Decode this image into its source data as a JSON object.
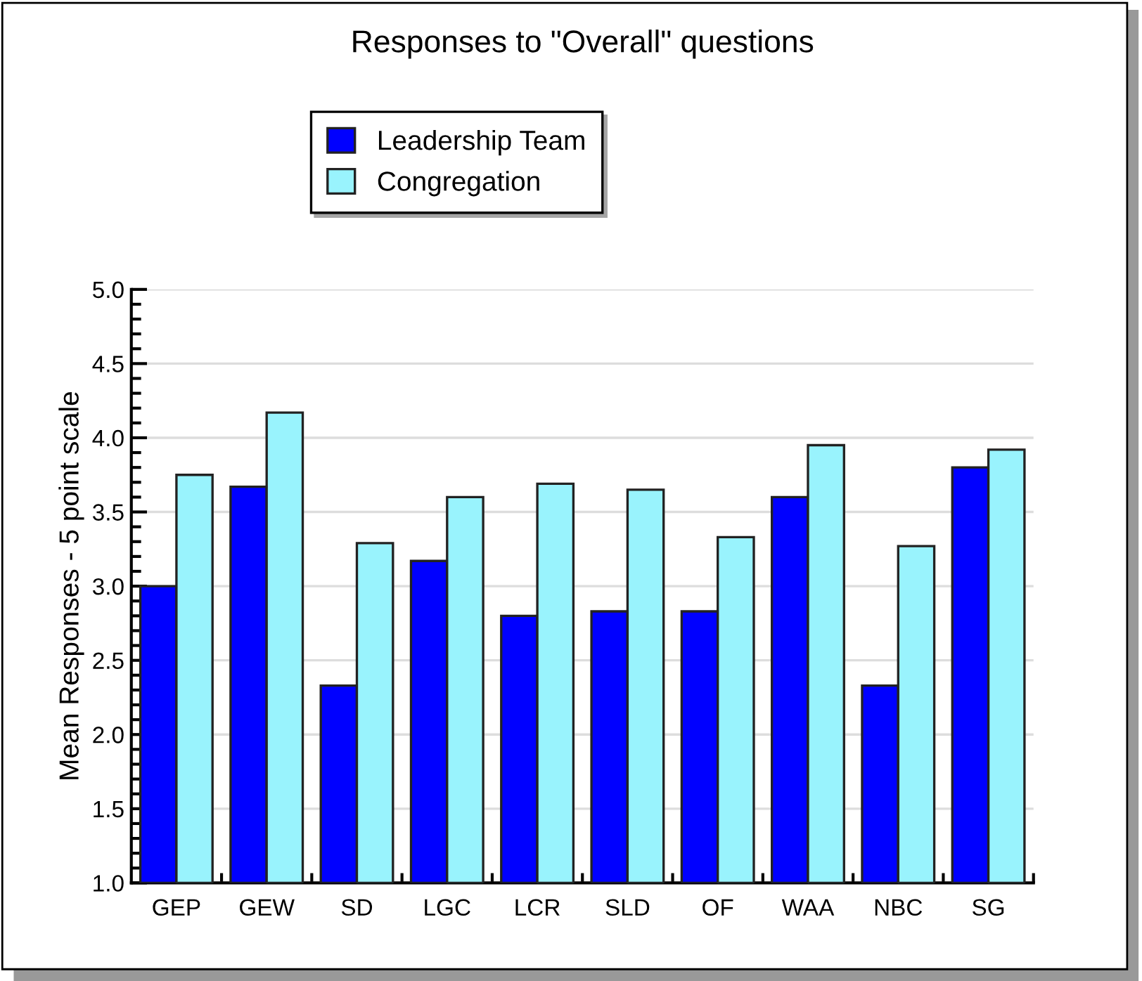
{
  "chart_data": {
    "type": "bar",
    "title": "Responses to \"Overall\" questions",
    "ylabel": "Mean Responses - 5 point scale",
    "categories": [
      "GEP",
      "GEW",
      "SD",
      "LGC",
      "LCR",
      "SLD",
      "OF",
      "WAA",
      "NBC",
      "SG"
    ],
    "series": [
      {
        "name": "Leadership Team",
        "color": "#0000ff",
        "values": [
          3.0,
          3.67,
          2.33,
          3.17,
          2.8,
          2.83,
          2.83,
          3.6,
          2.33,
          3.8
        ]
      },
      {
        "name": "Congregation",
        "color": "#99f3fd",
        "values": [
          3.75,
          4.17,
          3.29,
          3.6,
          3.69,
          3.65,
          3.33,
          3.95,
          3.27,
          3.92
        ]
      }
    ],
    "ylim": [
      1.0,
      5.0
    ],
    "yticks": [
      {
        "value": 1.0,
        "label": "1.0"
      },
      {
        "value": 1.5,
        "label": "1.5"
      },
      {
        "value": 2.0,
        "label": "2.0"
      },
      {
        "value": 2.5,
        "label": "2.5"
      },
      {
        "value": 3.0,
        "label": "3.0"
      },
      {
        "value": 3.5,
        "label": "3.5"
      },
      {
        "value": 4.0,
        "label": "4.0"
      },
      {
        "value": 4.5,
        "label": "4.5"
      },
      {
        "value": 5.0,
        "label": "5.0"
      }
    ],
    "grid": "y",
    "legend": "top"
  }
}
